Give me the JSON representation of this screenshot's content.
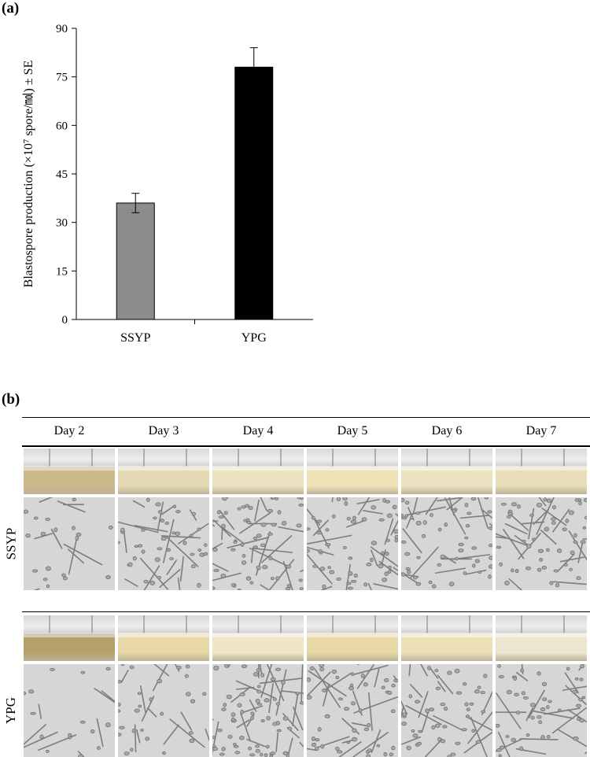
{
  "panel_a_label": "(a)",
  "panel_b_label": "(b)",
  "chart_data": {
    "type": "bar",
    "categories": [
      "SSYP",
      "YPG"
    ],
    "values": [
      36,
      78
    ],
    "errors": [
      3,
      6
    ],
    "bar_colors": [
      "#8c8c8c",
      "#000000"
    ],
    "ylabel": "Blastospore production (×10⁷ spore/㏖) ± SE",
    "ylim": [
      0,
      90
    ],
    "yticks": [
      0,
      15,
      30,
      45,
      60,
      75,
      90
    ],
    "grid": false
  },
  "panel_b": {
    "days": [
      "Day 2",
      "Day 3",
      "Day 4",
      "Day 5",
      "Day 6",
      "Day 7"
    ],
    "rows": [
      {
        "label": "SSYP",
        "liquid_colors": [
          "#c9b98c",
          "#e3d9b4",
          "#ebe3c2",
          "#ede2b6",
          "#ece4c0",
          "#e7ddb8"
        ],
        "densities": [
          0.2,
          0.55,
          0.8,
          0.75,
          0.7,
          0.7
        ]
      },
      {
        "label": "YPG",
        "liquid_colors": [
          "#b5a069",
          "#e7d8a6",
          "#efe5c6",
          "#e8d8a6",
          "#ebe0b8",
          "#ece5cf"
        ],
        "densities": [
          0.15,
          0.35,
          0.9,
          0.65,
          0.6,
          0.6
        ]
      }
    ]
  }
}
